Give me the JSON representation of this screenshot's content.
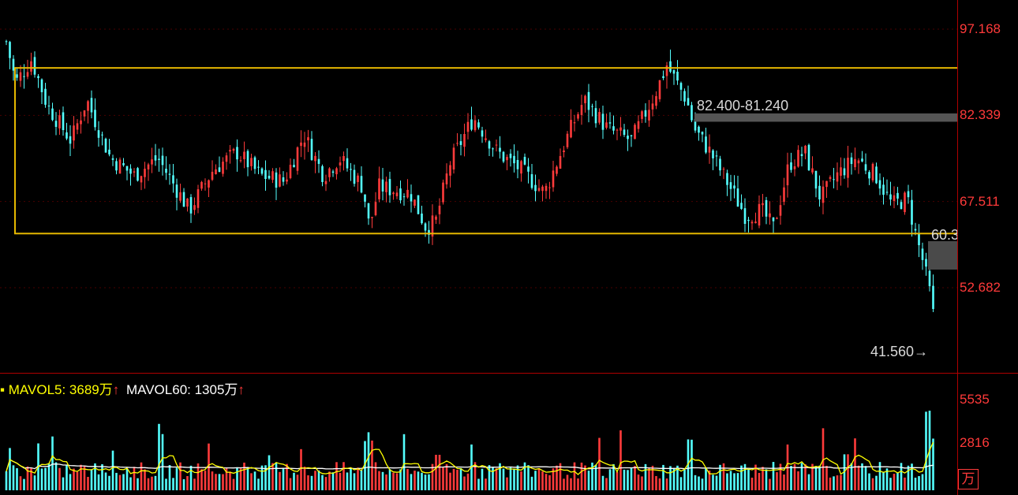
{
  "price_axis": {
    "labels": [
      "97.168",
      "82.339",
      "67.511",
      "52.682"
    ]
  },
  "annotations": {
    "resistance_label": "82.400-81.240",
    "gap_label": "60.3",
    "low_label": "41.560"
  },
  "volume_axis": {
    "labels": [
      "5535",
      "2816"
    ],
    "unit": "万"
  },
  "legend": {
    "mavol5": "MAVOL5: 3689万",
    "mavol5_arrow": "↑",
    "mavol60": "MAVOL60: 1305万",
    "mavol60_arrow": "↑"
  },
  "colors": {
    "up": "#ff3b3b",
    "down": "#54ffff",
    "box": "#e6b800",
    "ma5": "#ffff00",
    "ma60": "#ffffff",
    "axis": "#ff3a3a",
    "grid": "#4a0000"
  },
  "chart_data": {
    "type": "candlestick",
    "y_axis_ticks": [
      97.168,
      82.339,
      67.511,
      52.682
    ],
    "range_box": {
      "high": 90.5,
      "low": 62.0
    },
    "resistance": [
      82.4,
      81.24
    ],
    "period_low": 41.56,
    "volume_ticks": [
      5535,
      2816
    ],
    "volume_unit": "万",
    "mavol5": 3689,
    "mavol60": 1305
  }
}
